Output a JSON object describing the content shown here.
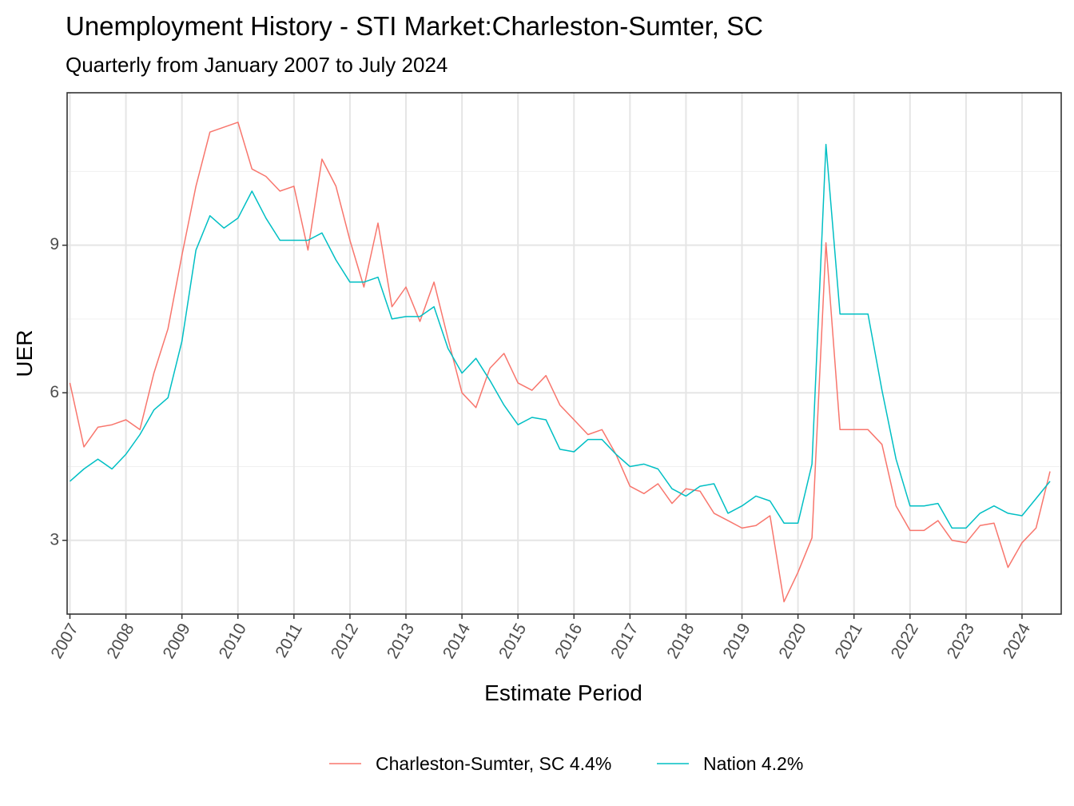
{
  "chart_data": {
    "type": "line",
    "title": "Unemployment History - STI Market:Charleston-Sumter, SC",
    "subtitle": "Quarterly from January 2007 to July 2024",
    "xlabel": "Estimate Period",
    "ylabel": "UER",
    "x_ticks": [
      "2007",
      "2008",
      "2009",
      "2010",
      "2011",
      "2012",
      "2013",
      "2014",
      "2015",
      "2016",
      "2017",
      "2018",
      "2019",
      "2020",
      "2021",
      "2022",
      "2023",
      "2024"
    ],
    "y_ticks": [
      "3",
      "6",
      "9"
    ],
    "ylim": [
      1.5,
      12.1
    ],
    "grid": true,
    "legend_position": "bottom",
    "x": [
      "2007-01",
      "2007-04",
      "2007-07",
      "2007-10",
      "2008-01",
      "2008-04",
      "2008-07",
      "2008-10",
      "2009-01",
      "2009-04",
      "2009-07",
      "2009-10",
      "2010-01",
      "2010-04",
      "2010-07",
      "2010-10",
      "2011-01",
      "2011-04",
      "2011-07",
      "2011-10",
      "2012-01",
      "2012-04",
      "2012-07",
      "2012-10",
      "2013-01",
      "2013-04",
      "2013-07",
      "2013-10",
      "2014-01",
      "2014-04",
      "2014-07",
      "2014-10",
      "2015-01",
      "2015-04",
      "2015-07",
      "2015-10",
      "2016-01",
      "2016-04",
      "2016-07",
      "2016-10",
      "2017-01",
      "2017-04",
      "2017-07",
      "2017-10",
      "2018-01",
      "2018-04",
      "2018-07",
      "2018-10",
      "2019-01",
      "2019-04",
      "2019-07",
      "2019-10",
      "2020-01",
      "2020-04",
      "2020-07",
      "2020-10",
      "2021-01",
      "2021-04",
      "2021-07",
      "2021-10",
      "2022-01",
      "2022-04",
      "2022-07",
      "2022-10",
      "2023-01",
      "2023-04",
      "2023-07",
      "2023-10",
      "2024-01",
      "2024-04",
      "2024-07"
    ],
    "series": [
      {
        "name": "Charleston-Sumter, SC 4.4%",
        "color": "#F8766D",
        "values": [
          6.2,
          4.9,
          5.3,
          5.35,
          5.45,
          5.25,
          6.4,
          7.3,
          8.8,
          10.2,
          11.3,
          11.4,
          11.5,
          10.55,
          10.4,
          10.1,
          10.2,
          8.9,
          10.75,
          10.2,
          9.1,
          8.15,
          9.45,
          7.75,
          8.15,
          7.45,
          8.25,
          7.1,
          6.0,
          5.7,
          6.5,
          6.8,
          6.2,
          6.05,
          6.35,
          5.75,
          5.45,
          5.15,
          5.25,
          4.75,
          4.1,
          3.95,
          4.15,
          3.75,
          4.05,
          4.0,
          3.55,
          3.4,
          3.25,
          3.3,
          3.5,
          1.75,
          2.35,
          3.05,
          9.05,
          5.25,
          5.25,
          5.25,
          4.95,
          3.7,
          3.2,
          3.2,
          3.4,
          3.0,
          2.95,
          3.3,
          3.35,
          2.45,
          2.95,
          3.25,
          4.4
        ]
      },
      {
        "name": "Nation 4.2%",
        "color": "#00BFC4",
        "values": [
          4.2,
          4.45,
          4.65,
          4.45,
          4.75,
          5.15,
          5.65,
          5.9,
          7.05,
          8.9,
          9.6,
          9.35,
          9.55,
          10.1,
          9.55,
          9.1,
          9.1,
          9.1,
          9.25,
          8.7,
          8.25,
          8.25,
          8.35,
          7.5,
          7.55,
          7.55,
          7.75,
          6.9,
          6.4,
          6.7,
          6.25,
          5.75,
          5.35,
          5.5,
          5.45,
          4.85,
          4.8,
          5.05,
          5.05,
          4.75,
          4.5,
          4.55,
          4.45,
          4.05,
          3.9,
          4.1,
          4.15,
          3.55,
          3.7,
          3.9,
          3.8,
          3.35,
          3.35,
          4.55,
          11.05,
          7.6,
          7.6,
          7.6,
          6.05,
          4.65,
          3.7,
          3.7,
          3.75,
          3.25,
          3.25,
          3.55,
          3.7,
          3.55,
          3.5,
          3.85,
          4.2
        ]
      }
    ]
  }
}
